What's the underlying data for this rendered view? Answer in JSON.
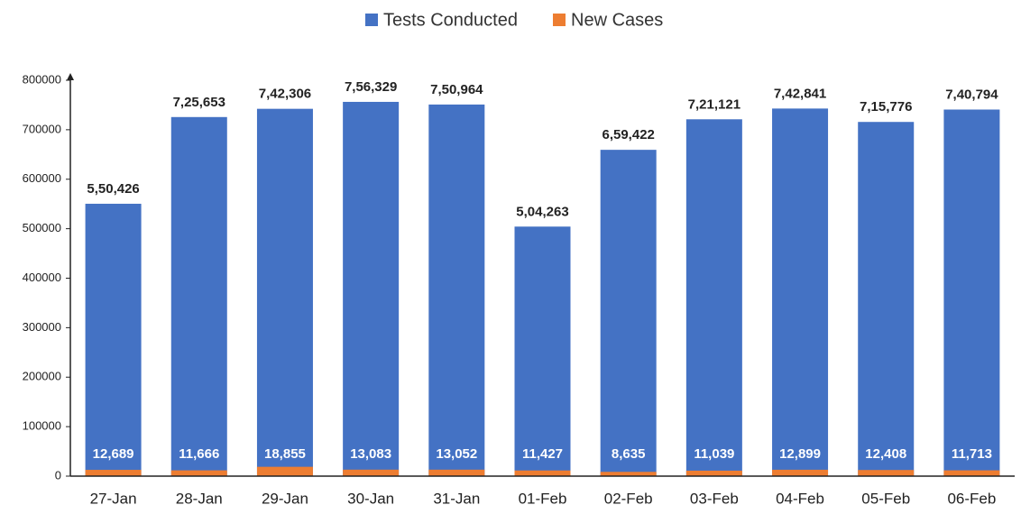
{
  "chart_data": {
    "type": "bar",
    "categories": [
      "27-Jan",
      "28-Jan",
      "29-Jan",
      "30-Jan",
      "31-Jan",
      "01-Feb",
      "02-Feb",
      "03-Feb",
      "04-Feb",
      "05-Feb",
      "06-Feb"
    ],
    "series": [
      {
        "name": "Tests Conducted",
        "color": "#4472c4",
        "values": [
          550426,
          725653,
          742306,
          756329,
          750964,
          504263,
          659422,
          721121,
          742841,
          715776,
          740794
        ],
        "value_labels": [
          "5,50,426",
          "7,25,653",
          "7,42,306",
          "7,56,329",
          "7,50,964",
          "5,04,263",
          "6,59,422",
          "7,21,121",
          "7,42,841",
          "7,15,776",
          "7,40,794"
        ]
      },
      {
        "name": "New Cases",
        "color": "#ed7d31",
        "values": [
          12689,
          11666,
          18855,
          13083,
          13052,
          11427,
          8635,
          11039,
          12899,
          12408,
          11713
        ],
        "value_labels": [
          "12,689",
          "11,666",
          "18,855",
          "13,083",
          "13,052",
          "11,427",
          "8,635",
          "11,039",
          "12,899",
          "12,408",
          "11,713"
        ]
      }
    ],
    "ylim": [
      0,
      800000
    ],
    "yticks": [
      0,
      100000,
      200000,
      300000,
      400000,
      500000,
      600000,
      700000,
      800000
    ]
  }
}
